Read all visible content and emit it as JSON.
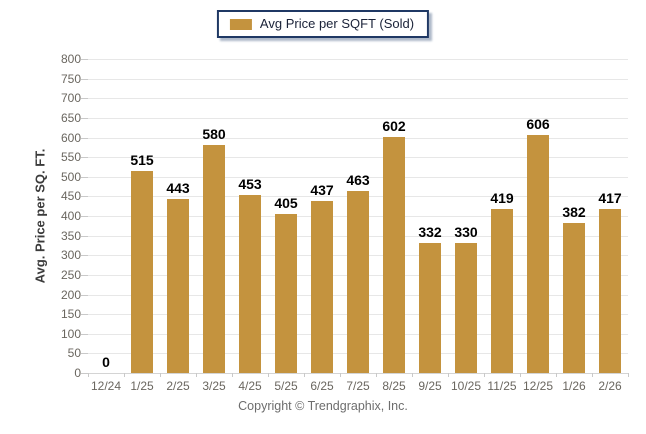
{
  "legend": {
    "label": "Avg Price per SQFT (Sold)",
    "swatch_color": "#C4933E"
  },
  "chart_data": {
    "type": "bar",
    "title": "",
    "categories": [
      "12/24",
      "1/25",
      "2/25",
      "3/25",
      "4/25",
      "5/25",
      "6/25",
      "7/25",
      "8/25",
      "9/25",
      "10/25",
      "11/25",
      "12/25",
      "1/26",
      "2/26"
    ],
    "series": [
      {
        "name": "Avg Price per SQFT (Sold)",
        "values": [
          0,
          515,
          443,
          580,
          453,
          405,
          437,
          463,
          602,
          332,
          330,
          419,
          606,
          382,
          417
        ],
        "color": "#C4933E"
      }
    ],
    "xlabel": "",
    "ylabel": "Avg. Price per SQ. FT.",
    "ylim": [
      0,
      800
    ],
    "ytick_step": 50,
    "grid": "horizontal",
    "legend_position": "top-center",
    "value_labels": true
  },
  "footer": {
    "copyright": "Copyright © Trendgraphix, Inc."
  },
  "colors": {
    "bar": "#C4933E",
    "legend_border": "#1f3864",
    "gridline": "#e7e7e7",
    "tick_text": "#6a665f",
    "value_text": "#000000",
    "copyright_text": "#6d6d6d"
  }
}
